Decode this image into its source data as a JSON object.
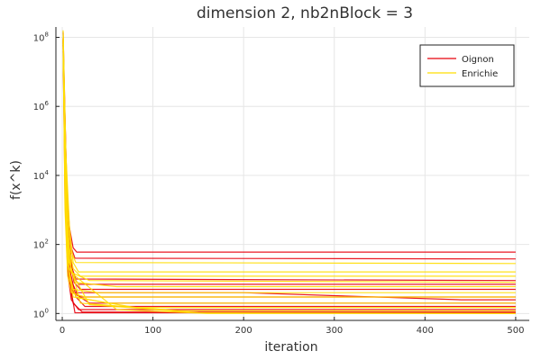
{
  "chart_data": {
    "type": "line",
    "title": "dimension 2, nb2nBlock = 3",
    "xlabel": "iteration",
    "ylabel": "f(x^k)",
    "xlim": [
      -7,
      515
    ],
    "ylim_log10": [
      -0.2,
      8.3
    ],
    "y_scale": "log10",
    "grid": true,
    "legend_position": "top-right",
    "x_ticks": [
      {
        "value": 0,
        "label": "0"
      },
      {
        "value": 100,
        "label": "100"
      },
      {
        "value": 200,
        "label": "200"
      },
      {
        "value": 300,
        "label": "300"
      },
      {
        "value": 400,
        "label": "400"
      },
      {
        "value": 500,
        "label": "500"
      }
    ],
    "y_ticks": [
      {
        "exp": 0,
        "base": "10",
        "sup": "0"
      },
      {
        "exp": 2,
        "base": "10",
        "sup": "2"
      },
      {
        "exp": 4,
        "base": "10",
        "sup": "4"
      },
      {
        "exp": 6,
        "base": "10",
        "sup": "6"
      },
      {
        "exp": 8,
        "base": "10",
        "sup": "8"
      }
    ],
    "colors": {
      "Oignon": "#e8000b",
      "Enrichie": "#ffdd00"
    },
    "series": [
      {
        "name": "Oignon",
        "legend": true,
        "x": [
          1,
          3,
          5,
          8,
          12,
          16,
          500
        ],
        "y": [
          140000000.0,
          500000.0,
          3000.0,
          300,
          80,
          60,
          60
        ]
      },
      {
        "name": "Oignon",
        "legend": false,
        "x": [
          1,
          3,
          6,
          10,
          14,
          500
        ],
        "y": [
          90000000.0,
          100000.0,
          600,
          80,
          40,
          38
        ]
      },
      {
        "name": "Oignon",
        "legend": false,
        "x": [
          1,
          4,
          7,
          11,
          15,
          500
        ],
        "y": [
          60000000.0,
          40000.0,
          200,
          20,
          10,
          9
        ]
      },
      {
        "name": "Oignon",
        "legend": false,
        "x": [
          1,
          3,
          6,
          12,
          18,
          500
        ],
        "y": [
          100000000.0,
          10000.0,
          80,
          12,
          7,
          7
        ]
      },
      {
        "name": "Oignon",
        "legend": false,
        "x": [
          1,
          4,
          8,
          13,
          20,
          500
        ],
        "y": [
          80000000.0,
          3000.0,
          40,
          8,
          5,
          5
        ]
      },
      {
        "name": "Oignon",
        "legend": false,
        "x": [
          1,
          3,
          5,
          9,
          16,
          200,
          440,
          500
        ],
        "y": [
          70000000.0,
          20000.0,
          100,
          10,
          4,
          4,
          2.5,
          2.5
        ]
      },
      {
        "name": "Oignon",
        "legend": false,
        "x": [
          1,
          4,
          7,
          10,
          20,
          500
        ],
        "y": [
          50000000.0,
          1000.0,
          30,
          5,
          3,
          3
        ]
      },
      {
        "name": "Oignon",
        "legend": false,
        "x": [
          1,
          3,
          6,
          12,
          30,
          500
        ],
        "y": [
          90000000.0,
          5000.0,
          50,
          4,
          2,
          2
        ]
      },
      {
        "name": "Oignon",
        "legend": false,
        "x": [
          1,
          4,
          8,
          15,
          25,
          500
        ],
        "y": [
          60000000.0,
          800,
          20,
          3,
          1.6,
          1.6
        ]
      },
      {
        "name": "Oignon",
        "legend": false,
        "x": [
          1,
          3,
          6,
          10,
          18,
          500
        ],
        "y": [
          40000000.0,
          2000.0,
          15,
          2.5,
          1.3,
          1.3
        ]
      },
      {
        "name": "Oignon",
        "legend": false,
        "x": [
          1,
          4,
          7,
          12,
          22,
          500
        ],
        "y": [
          70000000.0,
          600,
          10,
          2,
          1.1,
          1.1
        ]
      },
      {
        "name": "Oignon",
        "legend": false,
        "x": [
          1,
          3,
          5,
          9,
          14,
          500
        ],
        "y": [
          80000000.0,
          30000.0,
          300,
          6,
          1.05,
          1.05
        ]
      },
      {
        "name": "Enrichie",
        "legend": true,
        "x": [
          1,
          3,
          6,
          10,
          15,
          500
        ],
        "y": [
          160000000.0,
          200000.0,
          1000.0,
          60,
          30,
          28
        ]
      },
      {
        "name": "Enrichie",
        "legend": false,
        "x": [
          1,
          4,
          8,
          12,
          18,
          500
        ],
        "y": [
          120000000.0,
          40000.0,
          300,
          30,
          16,
          16
        ]
      },
      {
        "name": "Enrichie",
        "legend": false,
        "x": [
          1,
          3,
          7,
          12,
          20,
          500
        ],
        "y": [
          100000000.0,
          10000.0,
          100,
          20,
          12,
          12
        ]
      },
      {
        "name": "Enrichie",
        "legend": false,
        "x": [
          1,
          4,
          6,
          11,
          30,
          500
        ],
        "y": [
          90000000.0,
          3000.0,
          50,
          15,
          9,
          8
        ]
      },
      {
        "name": "Enrichie",
        "legend": false,
        "x": [
          1,
          3,
          8,
          14,
          60,
          500
        ],
        "y": [
          80000000.0,
          5000.0,
          30,
          8,
          6,
          6
        ]
      },
      {
        "name": "Enrichie",
        "legend": false,
        "x": [
          1,
          4,
          7,
          12,
          40,
          500
        ],
        "y": [
          70000000.0,
          2000.0,
          20,
          5,
          4,
          4
        ]
      },
      {
        "name": "Enrichie",
        "legend": false,
        "x": [
          1,
          3,
          6,
          10,
          25,
          500
        ],
        "y": [
          60000000.0,
          1000.0,
          12,
          4,
          3,
          3
        ]
      },
      {
        "name": "Enrichie",
        "legend": false,
        "x": [
          1,
          4,
          8,
          15,
          50,
          500
        ],
        "y": [
          50000000.0,
          600,
          10,
          3,
          2,
          2
        ]
      },
      {
        "name": "Enrichie",
        "legend": false,
        "x": [
          1,
          3,
          5,
          12,
          80,
          500
        ],
        "y": [
          90000000.0,
          20000.0,
          50,
          3,
          1.5,
          1.5
        ]
      },
      {
        "name": "Enrichie",
        "legend": false,
        "x": [
          1,
          4,
          7,
          20,
          130,
          500
        ],
        "y": [
          80000000.0,
          8000.0,
          40,
          2,
          1.2,
          1.2
        ]
      },
      {
        "name": "Enrichie",
        "legend": false,
        "x": [
          1,
          3,
          6,
          30,
          150,
          500
        ],
        "y": [
          70000000.0,
          4000.0,
          25,
          1.8,
          1.05,
          1.0
        ]
      },
      {
        "name": "Enrichie",
        "legend": false,
        "x": [
          1,
          5,
          10,
          60,
          160,
          500
        ],
        "y": [
          60000000.0,
          1000.0,
          15,
          1.3,
          1.0,
          1.0
        ]
      }
    ]
  }
}
